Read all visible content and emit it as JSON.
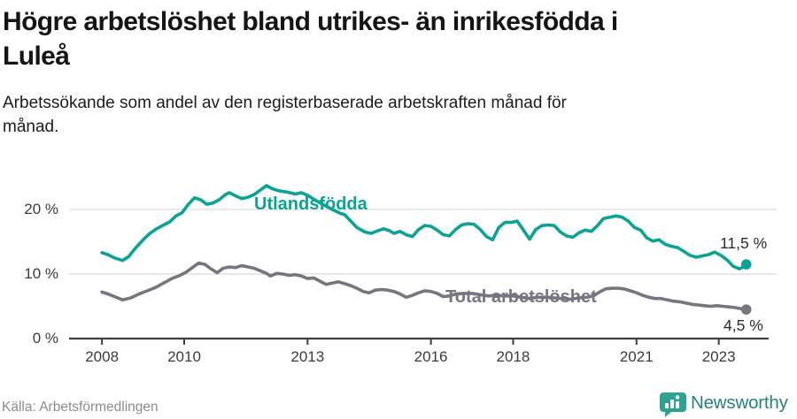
{
  "header": {
    "title": "Högre arbetslöshet bland utrikes- än inrikesfödda i\nLuleå",
    "subtitle": "Arbetssökande som andel av den registerbaserade arbetskraften månad för\nmånad."
  },
  "footer": {
    "source": "Källa: Arbetsförmedlingen",
    "brand": "Newsworthy",
    "brand_icon": "bar-chart-pin-icon"
  },
  "colors": {
    "series_foreign": "#0ba394",
    "series_total": "#76767e",
    "grid": "#e1e1e1",
    "axis": "#3f3f3f",
    "tick_text": "#3b3b3b",
    "end_label_text": "#2d2d2d",
    "logo": "#2ea393",
    "logo_text": "#27837b"
  },
  "chart_data": {
    "type": "line",
    "title": "Högre arbetslöshet bland utrikes- än inrikesfödda i Luleå",
    "subtitle": "Arbetssökande som andel av den registerbaserade arbetskraften månad för månad.",
    "xlabel": "",
    "ylabel": "",
    "xlim": [
      2007.2,
      2024.3
    ],
    "ylim": [
      0,
      25.75
    ],
    "grid": "horizontal",
    "legend_position": "inline-labels",
    "x_ticks": [
      {
        "year": 2008,
        "label": "2008"
      },
      {
        "year": 2010,
        "label": "2010"
      },
      {
        "year": 2013,
        "label": "2013"
      },
      {
        "year": 2016,
        "label": "2016"
      },
      {
        "year": 2018,
        "label": "2018"
      },
      {
        "year": 2021,
        "label": "2021"
      },
      {
        "year": 2023,
        "label": "2023"
      }
    ],
    "y_ticks": [
      {
        "value": 0,
        "label": "0 %"
      },
      {
        "value": 10,
        "label": "10 %"
      },
      {
        "value": 20,
        "label": "20 %"
      }
    ],
    "series": [
      {
        "name": "Utlandsfödda",
        "color": "#0ba394",
        "end_label": "11,5 %",
        "end_value": 11.5,
        "points": [
          [
            2008.0,
            13.3
          ],
          [
            2008.15,
            13.0
          ],
          [
            2008.3,
            12.5
          ],
          [
            2008.5,
            12.1
          ],
          [
            2008.65,
            12.7
          ],
          [
            2008.8,
            13.9
          ],
          [
            2009.0,
            15.3
          ],
          [
            2009.15,
            16.2
          ],
          [
            2009.3,
            16.9
          ],
          [
            2009.5,
            17.6
          ],
          [
            2009.65,
            18.1
          ],
          [
            2009.8,
            19.0
          ],
          [
            2009.95,
            19.5
          ],
          [
            2010.1,
            20.8
          ],
          [
            2010.25,
            21.8
          ],
          [
            2010.4,
            21.5
          ],
          [
            2010.55,
            20.8
          ],
          [
            2010.7,
            21.0
          ],
          [
            2010.85,
            21.5
          ],
          [
            2011.0,
            22.3
          ],
          [
            2011.1,
            22.6
          ],
          [
            2011.25,
            22.1
          ],
          [
            2011.4,
            21.7
          ],
          [
            2011.55,
            21.9
          ],
          [
            2011.7,
            22.3
          ],
          [
            2011.85,
            23.0
          ],
          [
            2012.0,
            23.7
          ],
          [
            2012.15,
            23.2
          ],
          [
            2012.3,
            22.9
          ],
          [
            2012.5,
            22.7
          ],
          [
            2012.7,
            22.4
          ],
          [
            2012.85,
            22.6
          ],
          [
            2013.0,
            22.2
          ],
          [
            2013.2,
            21.4
          ],
          [
            2013.4,
            20.7
          ],
          [
            2013.6,
            20.0
          ],
          [
            2013.8,
            19.4
          ],
          [
            2013.9,
            19.2
          ],
          [
            2014.05,
            18.2
          ],
          [
            2014.2,
            17.2
          ],
          [
            2014.4,
            16.5
          ],
          [
            2014.55,
            16.3
          ],
          [
            2014.7,
            16.7
          ],
          [
            2014.85,
            17.0
          ],
          [
            2015.0,
            16.7
          ],
          [
            2015.1,
            16.3
          ],
          [
            2015.25,
            16.6
          ],
          [
            2015.4,
            16.1
          ],
          [
            2015.55,
            15.8
          ],
          [
            2015.7,
            16.9
          ],
          [
            2015.85,
            17.5
          ],
          [
            2016.0,
            17.4
          ],
          [
            2016.15,
            16.8
          ],
          [
            2016.3,
            16.1
          ],
          [
            2016.45,
            15.9
          ],
          [
            2016.6,
            16.9
          ],
          [
            2016.75,
            17.6
          ],
          [
            2016.9,
            17.8
          ],
          [
            2017.05,
            17.7
          ],
          [
            2017.2,
            16.9
          ],
          [
            2017.35,
            15.8
          ],
          [
            2017.5,
            15.3
          ],
          [
            2017.65,
            17.2
          ],
          [
            2017.8,
            18.0
          ],
          [
            2017.95,
            18.0
          ],
          [
            2018.1,
            18.2
          ],
          [
            2018.25,
            16.8
          ],
          [
            2018.4,
            15.4
          ],
          [
            2018.55,
            16.9
          ],
          [
            2018.7,
            17.5
          ],
          [
            2018.85,
            17.6
          ],
          [
            2019.0,
            17.5
          ],
          [
            2019.15,
            16.5
          ],
          [
            2019.3,
            15.9
          ],
          [
            2019.45,
            15.7
          ],
          [
            2019.6,
            16.4
          ],
          [
            2019.75,
            16.8
          ],
          [
            2019.9,
            16.6
          ],
          [
            2020.05,
            17.5
          ],
          [
            2020.2,
            18.6
          ],
          [
            2020.35,
            18.8
          ],
          [
            2020.5,
            19.0
          ],
          [
            2020.65,
            18.8
          ],
          [
            2020.8,
            18.2
          ],
          [
            2020.95,
            17.2
          ],
          [
            2021.1,
            16.8
          ],
          [
            2021.25,
            15.6
          ],
          [
            2021.4,
            15.1
          ],
          [
            2021.55,
            15.3
          ],
          [
            2021.7,
            14.6
          ],
          [
            2021.85,
            14.3
          ],
          [
            2022.0,
            14.1
          ],
          [
            2022.15,
            13.5
          ],
          [
            2022.3,
            12.9
          ],
          [
            2022.45,
            12.6
          ],
          [
            2022.6,
            12.8
          ],
          [
            2022.75,
            13.0
          ],
          [
            2022.9,
            13.4
          ],
          [
            2023.05,
            12.9
          ],
          [
            2023.2,
            12.2
          ],
          [
            2023.35,
            11.2
          ],
          [
            2023.5,
            10.8
          ],
          [
            2023.6,
            11.1
          ],
          [
            2023.67,
            11.5
          ]
        ]
      },
      {
        "name": "Total arbetslöshet",
        "color": "#76767e",
        "end_label": "4,5 %",
        "end_value": 4.5,
        "points": [
          [
            2008.0,
            7.2
          ],
          [
            2008.15,
            6.9
          ],
          [
            2008.3,
            6.5
          ],
          [
            2008.5,
            6.0
          ],
          [
            2008.7,
            6.3
          ],
          [
            2008.9,
            6.9
          ],
          [
            2009.1,
            7.4
          ],
          [
            2009.3,
            7.9
          ],
          [
            2009.5,
            8.6
          ],
          [
            2009.7,
            9.3
          ],
          [
            2009.9,
            9.8
          ],
          [
            2010.05,
            10.3
          ],
          [
            2010.2,
            11.0
          ],
          [
            2010.35,
            11.7
          ],
          [
            2010.5,
            11.5
          ],
          [
            2010.65,
            10.8
          ],
          [
            2010.8,
            10.2
          ],
          [
            2010.95,
            10.9
          ],
          [
            2011.1,
            11.1
          ],
          [
            2011.25,
            11.0
          ],
          [
            2011.4,
            11.3
          ],
          [
            2011.55,
            11.1
          ],
          [
            2011.7,
            10.9
          ],
          [
            2011.85,
            10.5
          ],
          [
            2012.0,
            10.1
          ],
          [
            2012.1,
            9.7
          ],
          [
            2012.25,
            10.1
          ],
          [
            2012.4,
            10.0
          ],
          [
            2012.55,
            9.8
          ],
          [
            2012.7,
            9.9
          ],
          [
            2012.85,
            9.7
          ],
          [
            2013.0,
            9.3
          ],
          [
            2013.15,
            9.4
          ],
          [
            2013.3,
            8.9
          ],
          [
            2013.45,
            8.4
          ],
          [
            2013.6,
            8.6
          ],
          [
            2013.75,
            8.8
          ],
          [
            2013.9,
            8.5
          ],
          [
            2014.05,
            8.2
          ],
          [
            2014.2,
            7.8
          ],
          [
            2014.35,
            7.3
          ],
          [
            2014.5,
            7.1
          ],
          [
            2014.65,
            7.5
          ],
          [
            2014.8,
            7.6
          ],
          [
            2014.95,
            7.5
          ],
          [
            2015.1,
            7.3
          ],
          [
            2015.25,
            6.9
          ],
          [
            2015.4,
            6.4
          ],
          [
            2015.55,
            6.7
          ],
          [
            2015.7,
            7.1
          ],
          [
            2015.85,
            7.4
          ],
          [
            2016.0,
            7.3
          ],
          [
            2016.15,
            7.0
          ],
          [
            2016.3,
            6.5
          ],
          [
            2016.45,
            6.6
          ],
          [
            2016.6,
            6.9
          ],
          [
            2016.8,
            7.0
          ],
          [
            2017.0,
            7.0
          ],
          [
            2017.2,
            6.8
          ],
          [
            2017.4,
            6.6
          ],
          [
            2017.6,
            6.7
          ],
          [
            2017.8,
            6.6
          ],
          [
            2018.0,
            6.6
          ],
          [
            2018.2,
            6.4
          ],
          [
            2018.4,
            6.2
          ],
          [
            2018.6,
            6.4
          ],
          [
            2018.8,
            6.4
          ],
          [
            2019.0,
            6.3
          ],
          [
            2019.2,
            6.2
          ],
          [
            2019.4,
            6.1
          ],
          [
            2019.6,
            6.3
          ],
          [
            2019.8,
            6.4
          ],
          [
            2019.95,
            6.6
          ],
          [
            2020.1,
            7.2
          ],
          [
            2020.25,
            7.7
          ],
          [
            2020.4,
            7.8
          ],
          [
            2020.55,
            7.8
          ],
          [
            2020.7,
            7.7
          ],
          [
            2020.85,
            7.4
          ],
          [
            2021.0,
            7.1
          ],
          [
            2021.15,
            6.7
          ],
          [
            2021.3,
            6.4
          ],
          [
            2021.45,
            6.2
          ],
          [
            2021.6,
            6.2
          ],
          [
            2021.75,
            6.0
          ],
          [
            2021.9,
            5.8
          ],
          [
            2022.05,
            5.7
          ],
          [
            2022.2,
            5.5
          ],
          [
            2022.35,
            5.3
          ],
          [
            2022.5,
            5.2
          ],
          [
            2022.65,
            5.1
          ],
          [
            2022.8,
            5.0
          ],
          [
            2022.95,
            5.1
          ],
          [
            2023.1,
            5.0
          ],
          [
            2023.25,
            4.9
          ],
          [
            2023.4,
            4.8
          ],
          [
            2023.55,
            4.6
          ],
          [
            2023.67,
            4.5
          ]
        ]
      }
    ]
  }
}
